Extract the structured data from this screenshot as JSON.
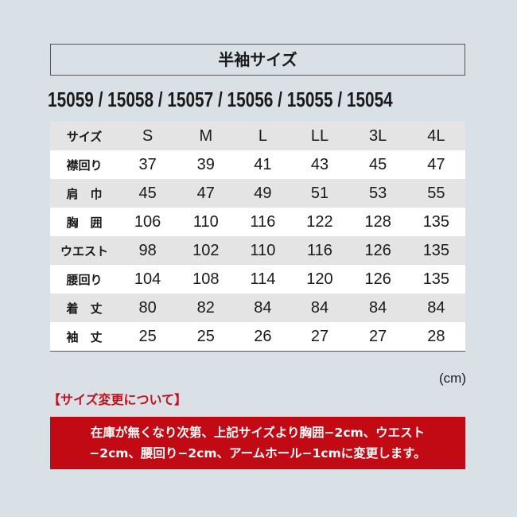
{
  "title": "半袖サイズ",
  "product_codes": "15059 / 15058 / 15057 / 15056 / 15055 / 15054",
  "table": {
    "header": [
      "サイズ",
      "S",
      "M",
      "L",
      "LL",
      "3L",
      "4L"
    ],
    "rows": [
      {
        "label": "襟回り",
        "values": [
          "37",
          "39",
          "41",
          "43",
          "45",
          "47"
        ]
      },
      {
        "label": "肩　巾",
        "values": [
          "45",
          "47",
          "49",
          "51",
          "53",
          "55"
        ]
      },
      {
        "label": "胸　囲",
        "values": [
          "106",
          "110",
          "116",
          "122",
          "128",
          "135"
        ]
      },
      {
        "label": "ウエスト",
        "values": [
          "98",
          "102",
          "110",
          "116",
          "126",
          "135"
        ]
      },
      {
        "label": "腰回り",
        "values": [
          "104",
          "108",
          "114",
          "120",
          "126",
          "135"
        ]
      },
      {
        "label": "着　丈",
        "values": [
          "80",
          "82",
          "84",
          "84",
          "84",
          "84"
        ]
      },
      {
        "label": "袖　丈",
        "values": [
          "25",
          "25",
          "26",
          "27",
          "27",
          "28"
        ]
      }
    ]
  },
  "unit": "(cm)",
  "notice": {
    "title": "【サイズ変更について】",
    "line1": "在庫が無くなり次第、上記サイズより胸囲−2cm、ウエスト",
    "line2": "−2cm、腰回り−2cm、アームホール−1cmに変更します。",
    "color": "#c20a14"
  }
}
